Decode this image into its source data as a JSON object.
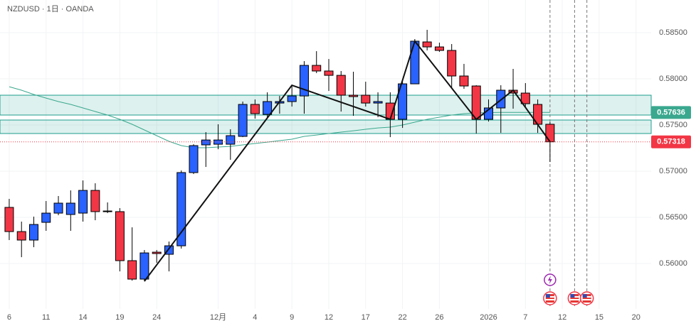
{
  "chart_data": {
    "type": "candlestick",
    "title": "NZDUSD · 1日 · OANDA",
    "up_color": "#2962ff",
    "down_color": "#f23645",
    "xlim": [
      -0.75,
      52.23
    ],
    "ylim": [
      0.55508,
      0.58854
    ],
    "xticks": [
      {
        "value": 0,
        "label": "6"
      },
      {
        "value": 3,
        "label": "11"
      },
      {
        "value": 6,
        "label": "14"
      },
      {
        "value": 9,
        "label": "19"
      },
      {
        "value": 12,
        "label": "24"
      },
      {
        "value": 17,
        "label": "12月"
      },
      {
        "value": 20,
        "label": "4"
      },
      {
        "value": 23,
        "label": "9"
      },
      {
        "value": 26,
        "label": "12"
      },
      {
        "value": 29,
        "label": "17"
      },
      {
        "value": 32,
        "label": "22"
      },
      {
        "value": 35,
        "label": "26"
      },
      {
        "value": 39,
        "label": "2026"
      },
      {
        "value": 42,
        "label": "7"
      },
      {
        "value": 45,
        "label": "12"
      },
      {
        "value": 48,
        "label": "15"
      },
      {
        "value": 51,
        "label": "20"
      }
    ],
    "yticks": [
      {
        "value": 0.56,
        "label": "0.56000"
      },
      {
        "value": 0.565,
        "label": "0.56500"
      },
      {
        "value": 0.57,
        "label": "0.57000"
      },
      {
        "value": 0.575,
        "label": "0.57500"
      },
      {
        "value": 0.58,
        "label": "0.58000"
      },
      {
        "value": 0.585,
        "label": "0.58500"
      }
    ],
    "ohlc": [
      [
        0.56608,
        0.567,
        0.56254,
        0.56346
      ],
      [
        0.56346,
        0.56454,
        0.56069,
        0.56254
      ],
      [
        0.56254,
        0.56508,
        0.56177,
        0.56423
      ],
      [
        0.56446,
        0.56677,
        0.56354,
        0.56546
      ],
      [
        0.56546,
        0.56731,
        0.56523,
        0.56654
      ],
      [
        0.56531,
        0.56792,
        0.56354,
        0.56654
      ],
      [
        0.56546,
        0.569,
        0.56454,
        0.56792
      ],
      [
        0.56792,
        0.56869,
        0.56469,
        0.56562
      ],
      [
        0.56569,
        0.56662,
        0.56546,
        0.56562
      ],
      [
        0.56562,
        0.566,
        0.55915,
        0.56031
      ],
      [
        0.56031,
        0.56392,
        0.55815,
        0.55831
      ],
      [
        0.55831,
        0.56146,
        0.55808,
        0.56115
      ],
      [
        0.56123,
        0.56146,
        0.56008,
        0.56108
      ],
      [
        0.561,
        0.56238,
        0.55915,
        0.56192
      ],
      [
        0.56192,
        0.57008,
        0.56162,
        0.56985
      ],
      [
        0.56985,
        0.57292,
        0.56969,
        0.57277
      ],
      [
        0.57285,
        0.57423,
        0.57046,
        0.57338
      ],
      [
        0.57292,
        0.57508,
        0.57238,
        0.57338
      ],
      [
        0.57292,
        0.57454,
        0.57123,
        0.57385
      ],
      [
        0.57377,
        0.57754,
        0.57369,
        0.57723
      ],
      [
        0.57723,
        0.57777,
        0.57569,
        0.57623
      ],
      [
        0.57615,
        0.57854,
        0.57569,
        0.57754
      ],
      [
        0.57738,
        0.57815,
        0.57623,
        0.57754
      ],
      [
        0.57754,
        0.57931,
        0.577,
        0.57815
      ],
      [
        0.57815,
        0.58192,
        0.57623,
        0.58146
      ],
      [
        0.58146,
        0.583,
        0.58062,
        0.58085
      ],
      [
        0.58085,
        0.58215,
        0.57869,
        0.58038
      ],
      [
        0.58038,
        0.58085,
        0.57646,
        0.57823
      ],
      [
        0.57823,
        0.58077,
        0.576,
        0.57808
      ],
      [
        0.57823,
        0.57969,
        0.577,
        0.57738
      ],
      [
        0.57738,
        0.57854,
        0.57585,
        0.57754
      ],
      [
        0.57738,
        0.57854,
        0.57369,
        0.57562
      ],
      [
        0.57562,
        0.57969,
        0.57469,
        0.57946
      ],
      [
        0.57946,
        0.58431,
        0.57946,
        0.58408
      ],
      [
        0.584,
        0.58531,
        0.58308,
        0.58346
      ],
      [
        0.58346,
        0.58392,
        0.58292,
        0.58308
      ],
      [
        0.58308,
        0.58377,
        0.57908,
        0.58031
      ],
      [
        0.58031,
        0.58162,
        0.57892,
        0.57923
      ],
      [
        0.57923,
        0.57931,
        0.57408,
        0.57562
      ],
      [
        0.57562,
        0.57777,
        0.57538,
        0.57685
      ],
      [
        0.57685,
        0.57931,
        0.57415,
        0.57877
      ],
      [
        0.57877,
        0.58108,
        0.57677,
        0.57846
      ],
      [
        0.57846,
        0.57954,
        0.577,
        0.57731
      ],
      [
        0.57723,
        0.57777,
        0.57415,
        0.57508
      ],
      [
        0.57508,
        0.57531,
        0.571,
        0.57318
      ]
    ],
    "ma": {
      "color": "#3aa88e",
      "values": [
        0.57915,
        0.57877,
        0.57831,
        0.57792,
        0.57754,
        0.57723,
        0.57685,
        0.57646,
        0.57608,
        0.57562,
        0.57508,
        0.57446,
        0.57385,
        0.57323,
        0.57277,
        0.57254,
        0.57254,
        0.57262,
        0.57269,
        0.57285,
        0.573,
        0.57315,
        0.57331,
        0.57346,
        0.57377,
        0.57392,
        0.57408,
        0.57423,
        0.57438,
        0.57454,
        0.57469,
        0.57477,
        0.575,
        0.57531,
        0.57562,
        0.57585,
        0.57608,
        0.57623,
        0.57631,
        0.57635,
        0.57636,
        0.57636,
        0.57636,
        0.57636,
        0.57636
      ]
    },
    "zones": [
      [
        0.57823,
        0.57608
      ],
      [
        0.57554,
        0.57408
      ]
    ],
    "zone_color": "#1e9e8e",
    "zigzag": {
      "x": [
        11,
        23,
        31,
        33,
        38,
        41,
        44
      ],
      "y": [
        0.55808,
        0.57931,
        0.57562,
        0.58408,
        0.57562,
        0.57877,
        0.57318
      ]
    },
    "event_x": [
      44,
      46,
      47
    ]
  }
}
